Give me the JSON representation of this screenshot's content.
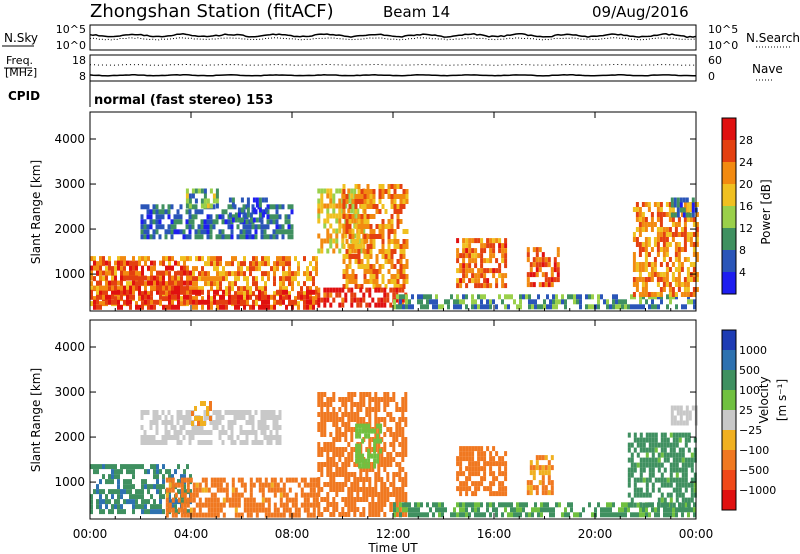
{
  "header": {
    "station": "Zhongshan Station (fitACF)",
    "beam": "Beam 14",
    "date": "09/Aug/2016"
  },
  "nsky_panel": {
    "label": "N.Sky",
    "left_ticks": [
      "10^5",
      "10^0"
    ],
    "right_ticks": [
      "10^5",
      "10^0"
    ],
    "right_label": "N.Search"
  },
  "freq_panel": {
    "label_line1": "Freq.",
    "label_line2": "[MHz]",
    "left_ticks": [
      "18",
      "8"
    ],
    "right_ticks": [
      "60",
      "0"
    ],
    "right_label": "Nave"
  },
  "cpid": {
    "label": "CPID",
    "text": "normal (fast stereo) 153"
  },
  "axes": {
    "ylabel": "Slant Range [km]",
    "xlabel": "Time UT",
    "xticks": [
      "00:00",
      "04:00",
      "08:00",
      "12:00",
      "16:00",
      "20:00",
      "00:00"
    ],
    "xticks_hours": [
      0,
      4,
      8,
      12,
      16,
      20,
      24
    ],
    "yticks": [
      "1000",
      "2000",
      "3000",
      "4000"
    ],
    "yticks_km": [
      1000,
      2000,
      3000,
      4000
    ],
    "ylim_km": [
      180,
      4600
    ],
    "xlim_hours": [
      0,
      24
    ]
  },
  "power_colorbar": {
    "label": "Power [dB]",
    "tick_labels": [
      "4",
      "8",
      "12",
      "16",
      "20",
      "24",
      "28"
    ],
    "colors": [
      "#1e1ef0",
      "#2a55b8",
      "#3f9060",
      "#9ad04a",
      "#f0c020",
      "#f28a10",
      "#e44010",
      "#e01010"
    ]
  },
  "velocity_colorbar": {
    "label_line1": "Velocity",
    "label_line2": "[m s⁻¹]",
    "tick_labels": [
      "1000",
      "500",
      "100",
      "25",
      "−25",
      "−100",
      "−500",
      "−1000"
    ],
    "colors": [
      "#1e3cb4",
      "#2e72b0",
      "#3f9060",
      "#70c040",
      "#c8c8c8",
      "#f0b020",
      "#f07820",
      "#f04818",
      "#e01010"
    ]
  },
  "chart_data": {
    "type": "heatmap",
    "title": "Zhongshan Station (fitACF)",
    "xlabel": "Time UT",
    "ylabel": "Slant Range [km]",
    "xlim": [
      0,
      24
    ],
    "ylim": [
      180,
      4600
    ],
    "panels": [
      {
        "name": "Power [dB]",
        "scale": [
          0,
          32
        ],
        "regions": [
          {
            "t": [
              0.0,
              9.0
            ],
            "r": [
              300,
              1400
            ],
            "value": 22
          },
          {
            "t": [
              0.0,
              9.0
            ],
            "r": [
              300,
              650
            ],
            "value": 28
          },
          {
            "t": [
              0.0,
              4.0
            ],
            "r": [
              650,
              1300
            ],
            "value": 26
          },
          {
            "t": [
              2.0,
              8.0
            ],
            "r": [
              1800,
              2550
            ],
            "value": 7
          },
          {
            "t": [
              3.8,
              5.0
            ],
            "r": [
              2500,
              2900
            ],
            "value": 12
          },
          {
            "t": [
              5.5,
              7.0
            ],
            "r": [
              2200,
              2700
            ],
            "value": 6
          },
          {
            "t": [
              9.0,
              11.0
            ],
            "r": [
              1500,
              2900
            ],
            "value": 18
          },
          {
            "t": [
              10.0,
              12.5
            ],
            "r": [
              700,
              3000
            ],
            "value": 22
          },
          {
            "t": [
              9.0,
              12.5
            ],
            "r": [
              300,
              700
            ],
            "value": 28
          },
          {
            "t": [
              14.5,
              16.5
            ],
            "r": [
              700,
              1800
            ],
            "value": 24
          },
          {
            "t": [
              17.3,
              18.5
            ],
            "r": [
              800,
              1600
            ],
            "value": 26
          },
          {
            "t": [
              12.0,
              24.0
            ],
            "r": [
              300,
              550
            ],
            "value": 10
          },
          {
            "t": [
              21.5,
              24.0
            ],
            "r": [
              600,
              2600
            ],
            "value": 22
          },
          {
            "t": [
              23.0,
              24.0
            ],
            "r": [
              2300,
              2700
            ],
            "value": 6
          }
        ]
      },
      {
        "name": "Velocity [m s-1]",
        "scale": [
          -1000,
          1000
        ],
        "regions": [
          {
            "t": [
              0.0,
              4.0
            ],
            "r": [
              300,
              1400
            ],
            "value": 400
          },
          {
            "t": [
              3.0,
              9.0
            ],
            "r": [
              300,
              1100
            ],
            "value": -150
          },
          {
            "t": [
              2.0,
              7.5
            ],
            "r": [
              1900,
              2600
            ],
            "value": 5
          },
          {
            "t": [
              4.0,
              4.8
            ],
            "r": [
              2300,
              2800
            ],
            "value": -80
          },
          {
            "t": [
              9.0,
              12.5
            ],
            "r": [
              300,
              3000
            ],
            "value": -200
          },
          {
            "t": [
              10.5,
              11.5
            ],
            "r": [
              1400,
              2300
            ],
            "value": 60
          },
          {
            "t": [
              14.5,
              16.5
            ],
            "r": [
              800,
              1800
            ],
            "value": -200
          },
          {
            "t": [
              17.3,
              18.3
            ],
            "r": [
              800,
              1600
            ],
            "value": -120
          },
          {
            "t": [
              12.0,
              24.0
            ],
            "r": [
              300,
              550
            ],
            "value": 120
          },
          {
            "t": [
              21.3,
              24.0
            ],
            "r": [
              500,
              2100
            ],
            "value": 150
          },
          {
            "t": [
              23.0,
              24.0
            ],
            "r": [
              2300,
              2700
            ],
            "value": 5
          }
        ]
      }
    ]
  }
}
